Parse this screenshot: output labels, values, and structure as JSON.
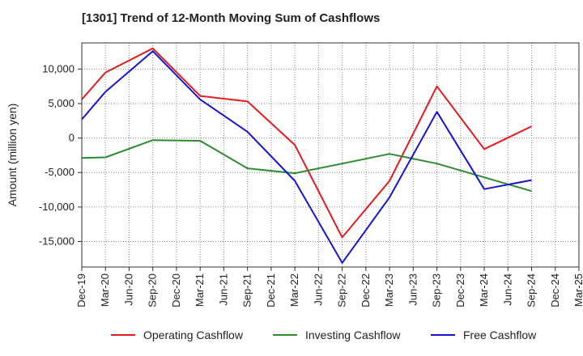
{
  "title": "[1301]  Trend of 12-Month Moving Sum of Cashflows",
  "chart_data": {
    "type": "line",
    "title": "[1301]  Trend of 12-Month Moving Sum of Cashflows",
    "xlabel": "",
    "ylabel": "Amount (million yen)",
    "categories": [
      "Dec-19",
      "Mar-20",
      "Jun-20",
      "Sep-20",
      "Dec-20",
      "Mar-21",
      "Jun-21",
      "Sep-21",
      "Dec-21",
      "Mar-22",
      "Jun-22",
      "Sep-22",
      "Dec-22",
      "Mar-23",
      "Jun-23",
      "Sep-23",
      "Dec-23",
      "Mar-24",
      "Jun-24",
      "Sep-24",
      "Dec-24",
      "Mar-25"
    ],
    "ylim": [
      -18700,
      13800
    ],
    "yticks": [
      -15000,
      -10000,
      -5000,
      0,
      5000,
      10000
    ],
    "ytick_labels": [
      "-15,000",
      "-10,000",
      "-5,000",
      "0",
      "5,000",
      "10,000"
    ],
    "grid": true,
    "legend_position": "bottom",
    "series": [
      {
        "name": "Operating Cashflow",
        "color": "#e41a1c",
        "values": [
          5600,
          9500,
          null,
          13000,
          null,
          6100,
          null,
          5300,
          null,
          -1000,
          null,
          -14400,
          null,
          -6200,
          null,
          7500,
          null,
          -1600,
          null,
          1700,
          null,
          null
        ]
      },
      {
        "name": "Investing Cashflow",
        "color": "#2e8b2e",
        "values": [
          -2900,
          -2800,
          null,
          -300,
          null,
          -400,
          null,
          -4400,
          null,
          -5100,
          null,
          -3700,
          null,
          -2300,
          null,
          -3700,
          null,
          -5700,
          null,
          -7700,
          null,
          null
        ]
      },
      {
        "name": "Free Cashflow",
        "color": "#1515d0",
        "values": [
          2700,
          6700,
          null,
          12600,
          null,
          5600,
          null,
          900,
          null,
          -6200,
          null,
          -18100,
          null,
          -8600,
          null,
          3800,
          null,
          -7400,
          null,
          -6100,
          null,
          null
        ]
      }
    ]
  }
}
